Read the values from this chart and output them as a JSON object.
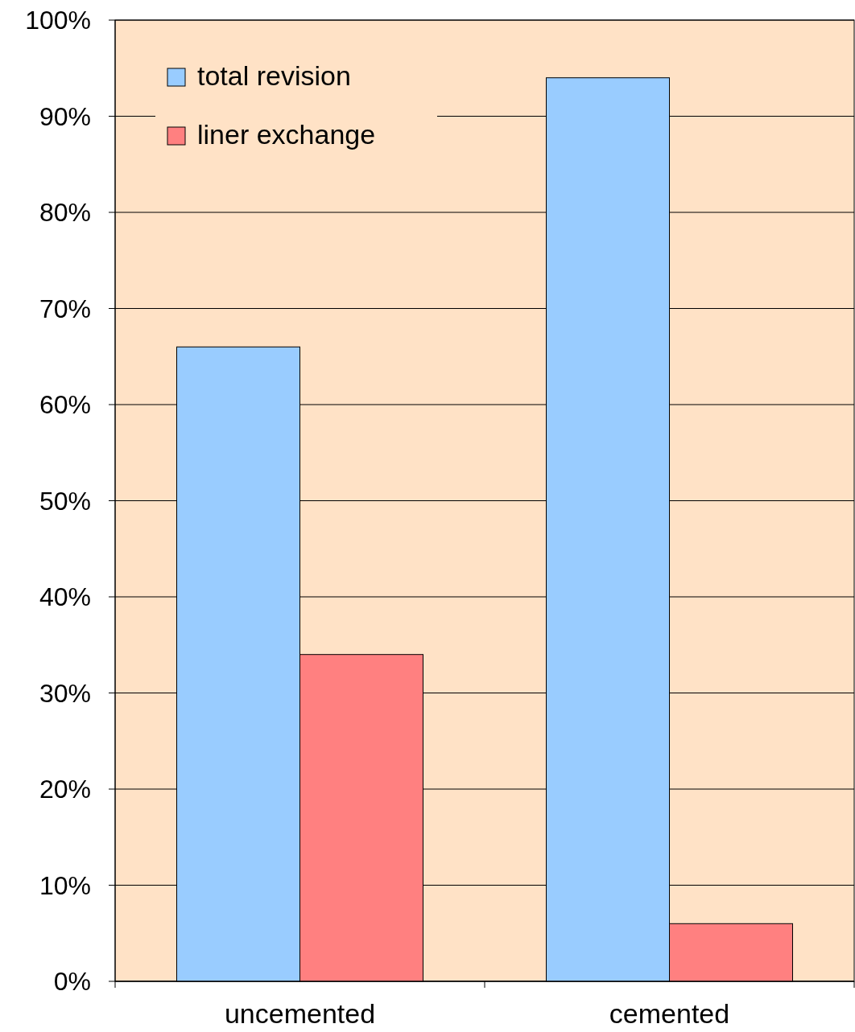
{
  "chart_data": {
    "type": "bar",
    "categories": [
      "uncemented",
      "cemented"
    ],
    "series": [
      {
        "name": "total revision",
        "color": "#99ccff",
        "values": [
          66,
          94
        ]
      },
      {
        "name": "liner exchange",
        "color": "#ff8080",
        "values": [
          34,
          6
        ]
      }
    ],
    "ylim": [
      0,
      100
    ],
    "yticks": [
      {
        "value": 0,
        "label": "0%"
      },
      {
        "value": 10,
        "label": "10%"
      },
      {
        "value": 20,
        "label": "20%"
      },
      {
        "value": 30,
        "label": "30%"
      },
      {
        "value": 40,
        "label": "40%"
      },
      {
        "value": 50,
        "label": "50%"
      },
      {
        "value": 60,
        "label": "60%"
      },
      {
        "value": 70,
        "label": "70%"
      },
      {
        "value": 80,
        "label": "80%"
      },
      {
        "value": 90,
        "label": "90%"
      },
      {
        "value": 100,
        "label": "100%"
      }
    ],
    "grid": "y",
    "legend": "top left"
  }
}
